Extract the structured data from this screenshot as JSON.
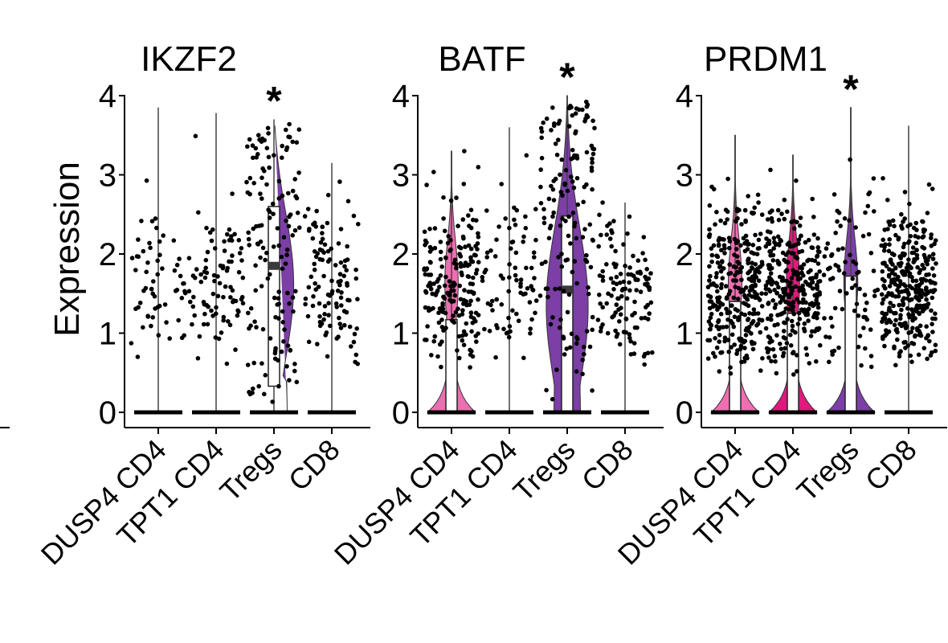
{
  "figure": {
    "ylabel": "Expression",
    "categories": [
      "DUSP4 CD4",
      "TPT1 CD4",
      "Tregs",
      "CD8"
    ],
    "significance_marker": "*"
  },
  "chart_data": [
    {
      "type": "violin",
      "title": "IKZF2",
      "ylabel": "Expression",
      "categories": [
        "DUSP4 CD4",
        "TPT1 CD4",
        "Tregs",
        "CD8"
      ],
      "y_ticks": [
        0,
        1,
        2,
        3,
        4
      ],
      "ylim": [
        0,
        4
      ],
      "colors": [
        "#ec6fb1",
        "#e0197d",
        "#7b3fa5",
        "#7b3fa5"
      ],
      "violins": [
        false,
        false,
        true,
        false
      ],
      "box": [
        null,
        null,
        {
          "q1": 0.33,
          "median": 1.85,
          "q3": 2.6
        },
        null
      ],
      "max": [
        3.85,
        3.78,
        3.7,
        3.15
      ],
      "point_counts": [
        60,
        90,
        140,
        110
      ],
      "significant": "Tregs"
    },
    {
      "type": "violin",
      "title": "BATF",
      "ylabel": "Expression",
      "categories": [
        "DUSP4 CD4",
        "TPT1 CD4",
        "Tregs",
        "CD8"
      ],
      "y_ticks": [
        0,
        1,
        2,
        3,
        4
      ],
      "ylim": [
        0,
        4
      ],
      "colors": [
        "#ec6fb1",
        "#e0197d",
        "#7b3fa5",
        "#7b3fa5"
      ],
      "violins": [
        true,
        false,
        true,
        false
      ],
      "box": [
        {
          "q1": 0.0,
          "median": 0.0,
          "q3": 1.17
        },
        null,
        {
          "q1": 0.0,
          "median": 1.55,
          "q3": 2.48
        },
        null
      ],
      "max": [
        3.3,
        3.6,
        4.0,
        2.65
      ],
      "point_counts": [
        200,
        80,
        150,
        120
      ],
      "significant": "Tregs"
    },
    {
      "type": "violin",
      "title": "PRDM1",
      "ylabel": "Expression",
      "categories": [
        "DUSP4 CD4",
        "TPT1 CD4",
        "Tregs",
        "CD8"
      ],
      "y_ticks": [
        0,
        1,
        2,
        3,
        4
      ],
      "ylim": [
        0,
        4
      ],
      "colors": [
        "#ec6fb1",
        "#e0197d",
        "#7b3fa5",
        "#7b3fa5"
      ],
      "violins": [
        true,
        true,
        true,
        false
      ],
      "box": [
        {
          "q1": 0.0,
          "median": 0.0,
          "q3": 1.4
        },
        {
          "q1": 0.0,
          "median": 0.0,
          "q3": 1.25
        },
        {
          "q1": 0.0,
          "median": 0.0,
          "q3": 1.72
        },
        null
      ],
      "max": [
        3.5,
        3.25,
        3.85,
        3.62
      ],
      "point_counts": [
        300,
        300,
        80,
        330
      ],
      "significant": "Tregs"
    }
  ]
}
